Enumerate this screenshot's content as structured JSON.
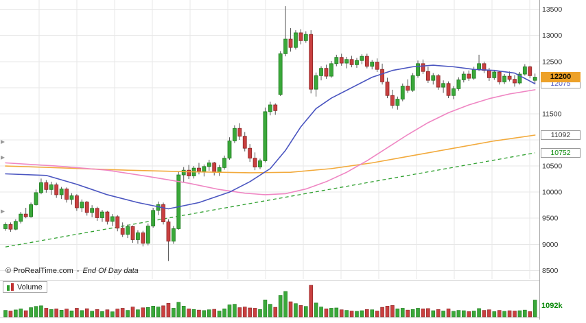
{
  "branding": {
    "copyright": "© ProRealTime.com",
    "separator": "-",
    "data_note": "End Of Day data"
  },
  "volume_panel": {
    "label": "Volume",
    "latest_value": "1092k"
  },
  "price_axis": {
    "ticks": [
      "13500",
      "13000",
      "12500",
      "11500",
      "10500",
      "10000",
      "9500",
      "9000",
      "8500"
    ],
    "last_price": "12200",
    "last_price_bg": "#eda128",
    "indicator_values": {
      "blue_ma": "12075",
      "orange_ma": "11092",
      "trendline": "10752"
    }
  },
  "chart_data": {
    "type": "candlestick",
    "title": "",
    "ylim": [
      8400,
      13600
    ],
    "y_grid_step": 500,
    "grid": "on",
    "legend_position": "bottom-left-volume-panel",
    "candles": [
      [
        9300,
        9420,
        9260,
        9380
      ],
      [
        9380,
        9420,
        9240,
        9290
      ],
      [
        9290,
        9480,
        9270,
        9440
      ],
      [
        9440,
        9620,
        9400,
        9580
      ],
      [
        9580,
        9700,
        9500,
        9530
      ],
      [
        9530,
        9800,
        9510,
        9760
      ],
      [
        9760,
        10050,
        9740,
        9990
      ],
      [
        9990,
        10260,
        9960,
        10180
      ],
      [
        10180,
        10230,
        9990,
        10050
      ],
      [
        10050,
        10200,
        9950,
        10140
      ],
      [
        10140,
        10180,
        9890,
        9950
      ],
      [
        9950,
        10100,
        9870,
        10060
      ],
      [
        10060,
        10090,
        9800,
        9860
      ],
      [
        9860,
        9980,
        9760,
        9930
      ],
      [
        9930,
        9960,
        9640,
        9700
      ],
      [
        9700,
        9860,
        9620,
        9810
      ],
      [
        9810,
        9830,
        9550,
        9610
      ],
      [
        9610,
        9750,
        9520,
        9690
      ],
      [
        9690,
        9720,
        9450,
        9510
      ],
      [
        9510,
        9660,
        9430,
        9620
      ],
      [
        9620,
        9640,
        9380,
        9440
      ],
      [
        9440,
        9580,
        9350,
        9530
      ],
      [
        9530,
        9560,
        9250,
        9310
      ],
      [
        9310,
        9420,
        9140,
        9190
      ],
      [
        9190,
        9380,
        9120,
        9340
      ],
      [
        9340,
        9360,
        9030,
        9090
      ],
      [
        9090,
        9270,
        9010,
        9220
      ],
      [
        9220,
        9260,
        8960,
        9020
      ],
      [
        9020,
        9400,
        8980,
        9350
      ],
      [
        9350,
        9700,
        9320,
        9650
      ],
      [
        9650,
        9820,
        9560,
        9760
      ],
      [
        9760,
        9800,
        9380,
        9430
      ],
      [
        9430,
        9480,
        8680,
        9060
      ],
      [
        9060,
        9350,
        9010,
        9300
      ],
      [
        9300,
        10400,
        9280,
        10330
      ],
      [
        10330,
        10480,
        10180,
        10420
      ],
      [
        10420,
        10520,
        10250,
        10310
      ],
      [
        10310,
        10500,
        10260,
        10460
      ],
      [
        10460,
        10560,
        10340,
        10400
      ],
      [
        10400,
        10530,
        10300,
        10490
      ],
      [
        10490,
        10620,
        10410,
        10560
      ],
      [
        10560,
        10580,
        10320,
        10380
      ],
      [
        10380,
        10520,
        10310,
        10470
      ],
      [
        10470,
        10700,
        10430,
        10650
      ],
      [
        10650,
        11050,
        10620,
        10980
      ],
      [
        10980,
        11280,
        10940,
        11220
      ],
      [
        11220,
        11320,
        11000,
        11070
      ],
      [
        11070,
        11150,
        10780,
        10840
      ],
      [
        10840,
        10920,
        10580,
        10650
      ],
      [
        10650,
        10760,
        10420,
        10480
      ],
      [
        10480,
        10640,
        10440,
        10600
      ],
      [
        10600,
        11620,
        10570,
        11540
      ],
      [
        11540,
        11730,
        11470,
        11670
      ],
      [
        11670,
        11700,
        11480,
        11560
      ],
      [
        11870,
        12700,
        11840,
        12650
      ],
      [
        12650,
        13560,
        12600,
        12930
      ],
      [
        12930,
        13140,
        12690,
        12770
      ],
      [
        12770,
        13100,
        12730,
        13050
      ],
      [
        13050,
        13120,
        12830,
        12900
      ],
      [
        12900,
        13080,
        12860,
        13020
      ],
      [
        13020,
        13100,
        11890,
        11970
      ],
      [
        11970,
        12290,
        11830,
        12230
      ],
      [
        12230,
        12410,
        12140,
        12370
      ],
      [
        12370,
        12440,
        12170,
        12220
      ],
      [
        12220,
        12510,
        12190,
        12460
      ],
      [
        12460,
        12630,
        12410,
        12580
      ],
      [
        12580,
        12650,
        12420,
        12470
      ],
      [
        12470,
        12590,
        12370,
        12540
      ],
      [
        12540,
        12610,
        12390,
        12440
      ],
      [
        12440,
        12570,
        12380,
        12520
      ],
      [
        12520,
        12640,
        12450,
        12600
      ],
      [
        12600,
        12650,
        12370,
        12410
      ],
      [
        12410,
        12530,
        12350,
        12490
      ],
      [
        12490,
        12560,
        12300,
        12350
      ],
      [
        12350,
        12460,
        12060,
        12110
      ],
      [
        12110,
        12190,
        11800,
        11850
      ],
      [
        11850,
        11960,
        11600,
        11660
      ],
      [
        11660,
        11830,
        11580,
        11780
      ],
      [
        11780,
        12080,
        11740,
        12030
      ],
      [
        12030,
        12160,
        11900,
        11950
      ],
      [
        11950,
        12280,
        11920,
        12230
      ],
      [
        12230,
        12520,
        12190,
        12460
      ],
      [
        12460,
        12540,
        12260,
        12310
      ],
      [
        12310,
        12400,
        12090,
        12140
      ],
      [
        12140,
        12280,
        12060,
        12230
      ],
      [
        12230,
        12260,
        11960,
        12010
      ],
      [
        12010,
        12140,
        11900,
        12080
      ],
      [
        12080,
        12120,
        11800,
        11850
      ],
      [
        11850,
        12030,
        11780,
        11980
      ],
      [
        11980,
        12200,
        11940,
        12150
      ],
      [
        12150,
        12310,
        12100,
        12260
      ],
      [
        12260,
        12330,
        12130,
        12180
      ],
      [
        12180,
        12400,
        12150,
        12350
      ],
      [
        12350,
        12630,
        12320,
        12460
      ],
      [
        12460,
        12500,
        12280,
        12330
      ],
      [
        12330,
        12380,
        12130,
        12190
      ],
      [
        12190,
        12340,
        12150,
        12300
      ],
      [
        12300,
        12320,
        12060,
        12110
      ],
      [
        12110,
        12260,
        12070,
        12220
      ],
      [
        12220,
        12310,
        12120,
        12160
      ],
      [
        12160,
        12240,
        12020,
        12090
      ],
      [
        12090,
        12300,
        12060,
        12260
      ],
      [
        12260,
        12450,
        12230,
        12400
      ],
      [
        12400,
        12420,
        12180,
        12230
      ],
      [
        12140,
        12270,
        12090,
        12200
      ]
    ],
    "volumes": [
      420,
      380,
      450,
      520,
      400,
      600,
      680,
      720,
      560,
      480,
      520,
      430,
      510,
      390,
      560,
      410,
      530,
      370,
      480,
      350,
      460,
      330,
      510,
      560,
      420,
      640,
      460,
      590,
      610,
      700,
      640,
      720,
      880,
      560,
      950,
      700,
      520,
      480,
      440,
      410,
      460,
      490,
      380,
      520,
      780,
      820,
      600,
      640,
      580,
      560,
      480,
      1100,
      820,
      620,
      1400,
      1650,
      980,
      860,
      740,
      680,
      2050,
      900,
      640,
      520,
      560,
      580,
      460,
      420,
      380,
      360,
      400,
      480,
      460,
      380,
      620,
      700,
      740,
      520,
      560,
      440,
      480,
      560,
      520,
      540,
      400,
      480,
      380,
      520,
      360,
      420,
      400,
      340,
      380,
      540,
      420,
      460,
      340,
      420,
      360,
      400,
      380,
      400,
      440,
      340,
      1092
    ],
    "volume_unit": "k",
    "overlays": [
      {
        "name": "trendline-green",
        "color": "#2fa02f",
        "dash": "5,4",
        "latest": 10752,
        "points": [
          [
            0,
            8950
          ],
          [
            104,
            10752
          ]
        ]
      },
      {
        "name": "ma-orange",
        "color": "#f2aa3c",
        "dash": null,
        "latest": 11092,
        "points": [
          [
            0,
            10500
          ],
          [
            12,
            10460
          ],
          [
            24,
            10420
          ],
          [
            36,
            10390
          ],
          [
            48,
            10370
          ],
          [
            56,
            10380
          ],
          [
            64,
            10450
          ],
          [
            72,
            10560
          ],
          [
            80,
            10700
          ],
          [
            88,
            10840
          ],
          [
            96,
            10980
          ],
          [
            104,
            11092
          ]
        ]
      },
      {
        "name": "ma-pink",
        "color": "#ef86c3",
        "dash": null,
        "latest": 11960,
        "points": [
          [
            0,
            10560
          ],
          [
            10,
            10500
          ],
          [
            20,
            10420
          ],
          [
            28,
            10300
          ],
          [
            36,
            10170
          ],
          [
            42,
            10050
          ],
          [
            47,
            9980
          ],
          [
            51,
            9950
          ],
          [
            55,
            9970
          ],
          [
            59,
            10060
          ],
          [
            63,
            10200
          ],
          [
            67,
            10380
          ],
          [
            71,
            10600
          ],
          [
            75,
            10850
          ],
          [
            79,
            11100
          ],
          [
            83,
            11330
          ],
          [
            87,
            11520
          ],
          [
            91,
            11670
          ],
          [
            95,
            11790
          ],
          [
            99,
            11880
          ],
          [
            104,
            11960
          ]
        ]
      },
      {
        "name": "ma-blue",
        "color": "#4a55c0",
        "dash": null,
        "latest": 12075,
        "points": [
          [
            0,
            10350
          ],
          [
            8,
            10320
          ],
          [
            14,
            10150
          ],
          [
            20,
            9950
          ],
          [
            26,
            9800
          ],
          [
            32,
            9680
          ],
          [
            38,
            9800
          ],
          [
            44,
            10000
          ],
          [
            48,
            10200
          ],
          [
            52,
            10450
          ],
          [
            55,
            10800
          ],
          [
            58,
            11250
          ],
          [
            61,
            11600
          ],
          [
            64,
            11800
          ],
          [
            68,
            12000
          ],
          [
            72,
            12200
          ],
          [
            76,
            12330
          ],
          [
            80,
            12400
          ],
          [
            84,
            12430
          ],
          [
            88,
            12400
          ],
          [
            92,
            12350
          ],
          [
            96,
            12330
          ],
          [
            100,
            12280
          ],
          [
            104,
            12075
          ]
        ]
      }
    ],
    "left_markers": [
      10960,
      10660,
      9630
    ],
    "colors": {
      "up": "#3aa83a",
      "up_border": "#1e7a1e",
      "down": "#c94040",
      "down_border": "#8a2525",
      "wick": "#555555",
      "grid": "#e7e7e7",
      "divider": "#cccccc",
      "axis": "#aaaaaa",
      "tick_text": "#333333"
    }
  }
}
